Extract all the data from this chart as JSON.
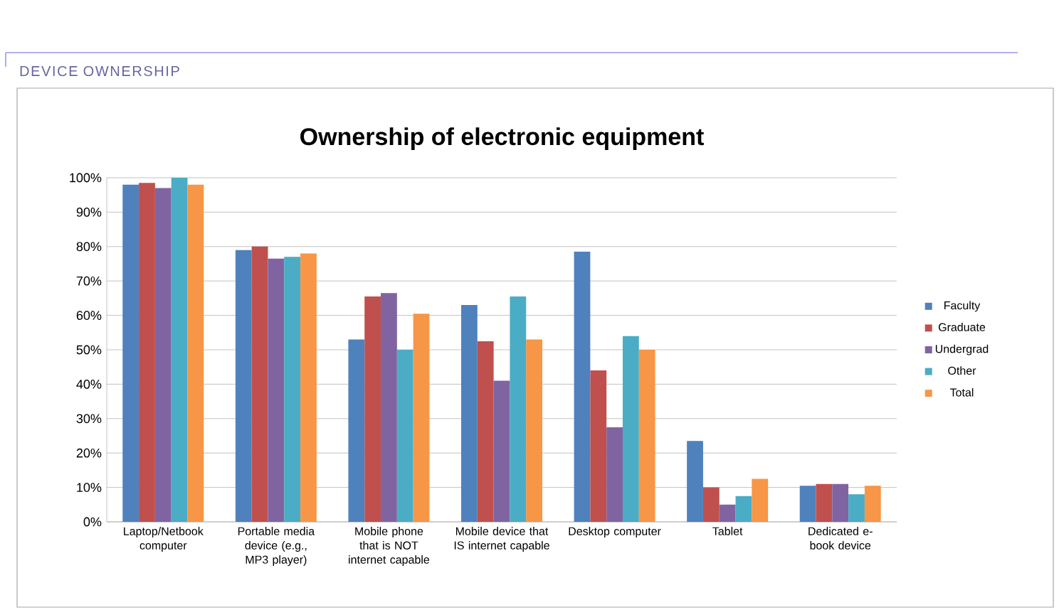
{
  "chart_data": {
    "type": "bar",
    "title": "Ownership of electronic equipment",
    "annotations": [
      "DEVICE OWNERSHIP"
    ],
    "categories": [
      "Laptop/Netbook computer",
      "Portable media device (e.g., MP3 player)",
      "Mobile phone that is NOT internet capable",
      "Mobile device that IS internet capable",
      "Desktop computer",
      "Tablet",
      "Dedicated e-book device"
    ],
    "series": [
      {
        "name": "Faculty",
        "color": "#4f81bd",
        "values": [
          98,
          79,
          53,
          63,
          78.5,
          23.5,
          10.5
        ]
      },
      {
        "name": "Graduate",
        "color": "#c0504d",
        "values": [
          98.5,
          80,
          65.5,
          52.5,
          44,
          10,
          11
        ]
      },
      {
        "name": "Undergrad",
        "color": "#8064a2",
        "values": [
          97,
          76.5,
          66.5,
          41,
          27.5,
          5,
          11
        ]
      },
      {
        "name": "Other",
        "color": "#4bacc6",
        "values": [
          100,
          77,
          50,
          65.5,
          54,
          7.5,
          8
        ]
      },
      {
        "name": "Total",
        "color": "#f79646",
        "values": [
          98,
          78,
          60.5,
          53,
          50,
          12.5,
          10.5
        ]
      }
    ],
    "ylim": [
      0,
      100
    ],
    "yticks": [
      {
        "value": 0,
        "label": "0%"
      },
      {
        "value": 10,
        "label": "10%"
      },
      {
        "value": 20,
        "label": "20%"
      },
      {
        "value": 30,
        "label": "30%"
      },
      {
        "value": 40,
        "label": "40%"
      },
      {
        "value": 50,
        "label": "50%"
      },
      {
        "value": 60,
        "label": "60%"
      },
      {
        "value": 70,
        "label": "70%"
      },
      {
        "value": 80,
        "label": "80%"
      },
      {
        "value": 90,
        "label": "90%"
      },
      {
        "value": 100,
        "label": "100%"
      }
    ],
    "grid": "y",
    "legend": "right"
  }
}
